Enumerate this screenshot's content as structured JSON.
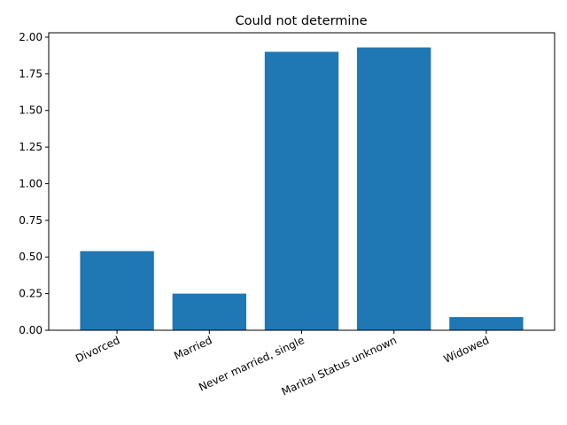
{
  "chart_data": {
    "type": "bar",
    "title": "Could not determine",
    "xlabel": "",
    "ylabel": "",
    "categories": [
      "Divorced",
      "Married",
      "Never married, single",
      "Marital Status unknown",
      "Widowed"
    ],
    "values": [
      0.54,
      0.25,
      1.9,
      1.93,
      0.09
    ],
    "ylim": [
      0,
      2.03
    ],
    "yticks": [
      "0.00",
      "0.25",
      "0.50",
      "0.75",
      "1.00",
      "1.25",
      "1.50",
      "1.75",
      "2.00"
    ],
    "bar_color": "#1f77b4",
    "grid": false,
    "legend": "none"
  }
}
